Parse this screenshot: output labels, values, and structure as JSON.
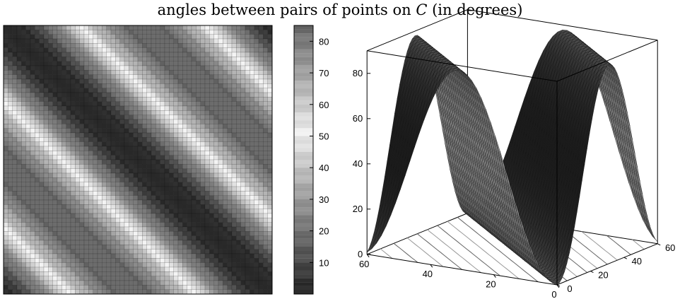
{
  "title": {
    "prefix": "angles between pairs of points on ",
    "symbol": "C",
    "suffix": " (in degrees)"
  },
  "chart_data": [
    {
      "type": "heatmap",
      "title": "",
      "xlabel": "",
      "ylabel": "",
      "grid_size": 60,
      "x_range": [
        0,
        60
      ],
      "y_range": [
        0,
        60
      ],
      "colormap": "grayscale banded (dark = small angle, light = ~45–55°, dark = large angle)",
      "colorbar": {
        "range": [
          0,
          85
        ],
        "ticks": [
          10,
          20,
          30,
          40,
          50,
          60,
          70,
          80
        ],
        "tick_labels": [
          "10",
          "20",
          "30",
          "40",
          "50",
          "60",
          "70",
          "80"
        ]
      },
      "description_of_values": "angle(i,j) symmetric; 0 on the main diagonal, rising to ~85 at offset ~20 and on corners",
      "model": {
        "diagonal": 0,
        "peak": 88,
        "wave_period": 62
      }
    },
    {
      "type": "surface3d",
      "title": "",
      "x_range": [
        0,
        60
      ],
      "y_range": [
        0,
        60
      ],
      "z_range": [
        0,
        90
      ],
      "x_ticks": [
        "0",
        "20",
        "40",
        "60"
      ],
      "y_ticks": [
        "0",
        "20",
        "40",
        "60"
      ],
      "z_ticks": [
        "0",
        "20",
        "40",
        "60",
        "80"
      ],
      "contours_on_floor": true,
      "box": true
    }
  ]
}
